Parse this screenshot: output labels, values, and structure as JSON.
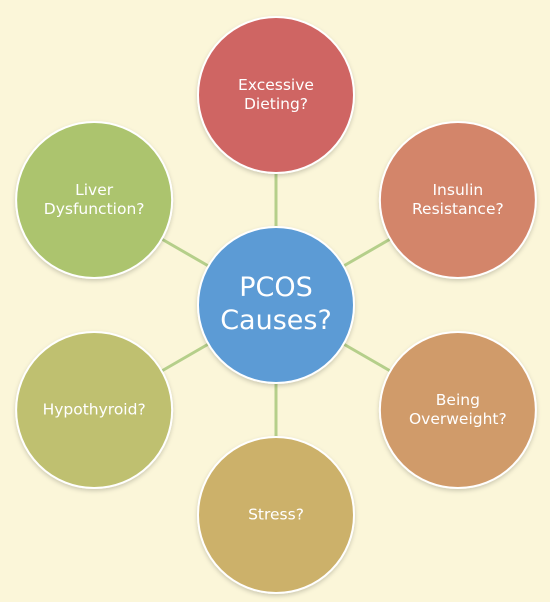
{
  "center": {
    "lines": [
      "PCOS",
      "Causes?"
    ],
    "color": "#5b9bd5"
  },
  "nodes": [
    {
      "id": "excessive-dieting",
      "lines": [
        "Excessive",
        "Dieting?"
      ],
      "color": "#cf6563"
    },
    {
      "id": "insulin-resistance",
      "lines": [
        "Insulin",
        "Resistance?"
      ],
      "color": "#d3856a"
    },
    {
      "id": "being-overweight",
      "lines": [
        "Being",
        "Overweight?"
      ],
      "color": "#d09b6a"
    },
    {
      "id": "stress",
      "lines": [
        "Stress?"
      ],
      "color": "#ccb16b"
    },
    {
      "id": "hypothyroid",
      "lines": [
        "Hypothyroid?"
      ],
      "color": "#bfc06f"
    },
    {
      "id": "liver-dysfunction",
      "lines": [
        "Liver",
        "Dysfunction?"
      ],
      "color": "#acc46e"
    }
  ],
  "connector_color": "#b5cf8a",
  "background_color": "#fbf6d9"
}
